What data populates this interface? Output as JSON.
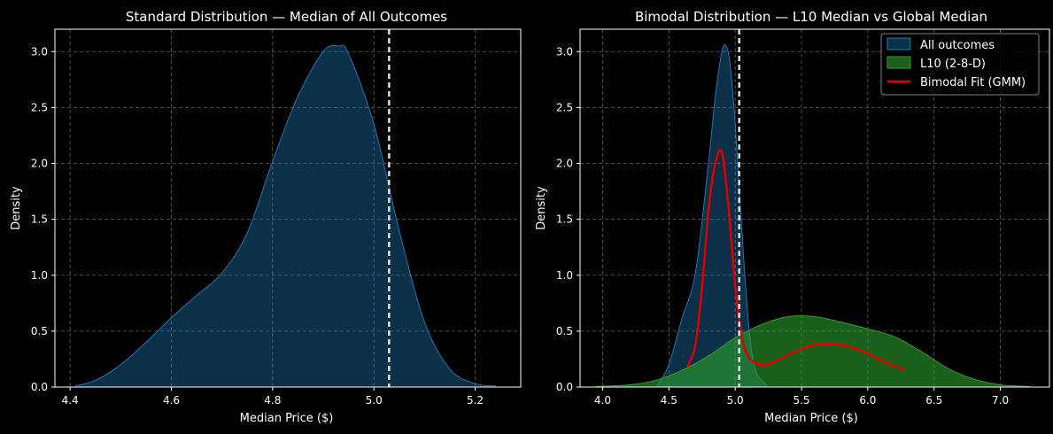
{
  "chart_data": [
    {
      "type": "area",
      "title": "Standard Distribution — Median of All Outcomes",
      "xlabel": "Median Price ($)",
      "ylabel": "Density",
      "xlim": [
        4.37,
        5.29
      ],
      "ylim": [
        0,
        3.2
      ],
      "xticks": [
        "4.4",
        "4.6",
        "4.8",
        "5.0",
        "5.2"
      ],
      "xtick_values": [
        4.4,
        4.6,
        4.8,
        5.0,
        5.2
      ],
      "yticks": [
        "0.0",
        "0.5",
        "1.0",
        "1.5",
        "2.0",
        "2.5",
        "3.0"
      ],
      "ytick_values": [
        0,
        0.5,
        1.0,
        1.5,
        2.0,
        2.5,
        3.0
      ],
      "grid": true,
      "vline": 5.03,
      "series": [
        {
          "name": "All outcomes",
          "color": "#1f77b4",
          "x": [
            4.41,
            4.45,
            4.5,
            4.55,
            4.6,
            4.65,
            4.7,
            4.75,
            4.8,
            4.85,
            4.9,
            4.93,
            4.95,
            5.0,
            5.05,
            5.1,
            5.15,
            5.2,
            5.24
          ],
          "y": [
            0.01,
            0.06,
            0.2,
            0.4,
            0.62,
            0.82,
            1.02,
            1.38,
            2.02,
            2.6,
            3.0,
            3.05,
            2.98,
            2.35,
            1.4,
            0.58,
            0.16,
            0.03,
            0.01
          ]
        }
      ]
    },
    {
      "type": "area",
      "title": "Bimodal Distribution — L10 Median vs Global Median",
      "xlabel": "Median Price ($)",
      "ylabel": "Density",
      "xlim": [
        3.83,
        7.37
      ],
      "ylim": [
        0,
        3.2
      ],
      "xticks": [
        "4.0",
        "4.5",
        "5.0",
        "5.5",
        "6.0",
        "6.5",
        "7.0"
      ],
      "xtick_values": [
        4.0,
        4.5,
        5.0,
        5.5,
        6.0,
        6.5,
        7.0
      ],
      "yticks": [
        "0.0",
        "0.5",
        "1.0",
        "1.5",
        "2.0",
        "2.5",
        "3.0"
      ],
      "ytick_values": [
        0,
        0.5,
        1.0,
        1.5,
        2.0,
        2.5,
        3.0
      ],
      "grid": true,
      "vline": 5.03,
      "legend_position": "top-right",
      "series": [
        {
          "name": "All outcomes",
          "kind": "filled",
          "color": "#1f77b4",
          "x": [
            4.41,
            4.5,
            4.6,
            4.7,
            4.8,
            4.85,
            4.9,
            4.93,
            4.96,
            5.0,
            5.05,
            5.1,
            5.15,
            5.24
          ],
          "y": [
            0.01,
            0.2,
            0.62,
            1.02,
            2.02,
            2.6,
            3.0,
            3.05,
            2.9,
            2.35,
            1.4,
            0.58,
            0.16,
            0.01
          ]
        },
        {
          "name": "L10 (2-8-D)",
          "kind": "filled",
          "color": "#2ca02c",
          "x": [
            3.95,
            4.2,
            4.4,
            4.6,
            4.8,
            5.0,
            5.2,
            5.4,
            5.6,
            5.8,
            6.0,
            6.2,
            6.4,
            6.6,
            6.8,
            7.0,
            7.22
          ],
          "y": [
            0.005,
            0.02,
            0.06,
            0.15,
            0.28,
            0.44,
            0.56,
            0.63,
            0.63,
            0.58,
            0.52,
            0.45,
            0.32,
            0.17,
            0.07,
            0.02,
            0.005
          ]
        },
        {
          "name": "Bimodal Fit (GMM)",
          "kind": "line",
          "color": "#e00000",
          "x": [
            4.64,
            4.7,
            4.75,
            4.8,
            4.85,
            4.9,
            4.95,
            5.0,
            5.05,
            5.1,
            5.15,
            5.2,
            5.3,
            5.4,
            5.5,
            5.6,
            5.7,
            5.8,
            5.9,
            6.0,
            6.1,
            6.2,
            6.28
          ],
          "y": [
            0.18,
            0.38,
            0.9,
            1.6,
            2.0,
            2.1,
            1.6,
            0.9,
            0.45,
            0.27,
            0.22,
            0.2,
            0.23,
            0.29,
            0.34,
            0.38,
            0.39,
            0.38,
            0.35,
            0.3,
            0.24,
            0.19,
            0.16
          ]
        }
      ]
    }
  ]
}
